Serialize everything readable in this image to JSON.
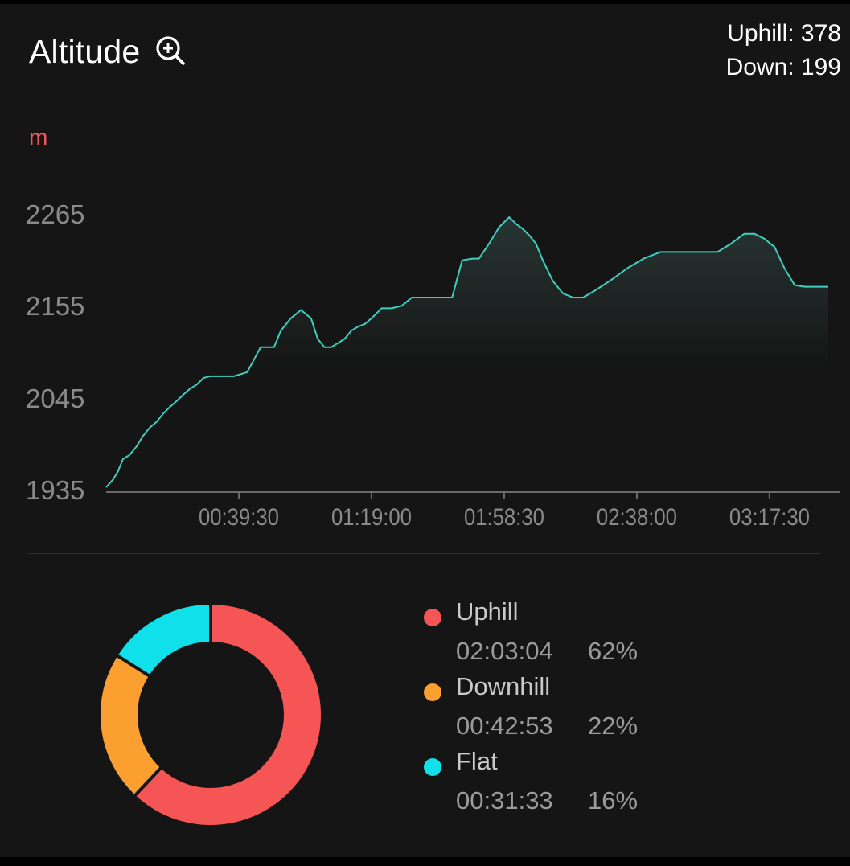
{
  "header": {
    "title": "Altitude",
    "zoom_icon": "zoom-in-icon",
    "uphill_label": "Uphill: 378",
    "down_label": "Down: 199"
  },
  "chart_data": {
    "type": "area",
    "ylabel": "m",
    "yticks": [
      "2265",
      "2155",
      "2045",
      "1935"
    ],
    "ylim": [
      1935,
      2265
    ],
    "xticks": [
      "00:39:30",
      "01:19:00",
      "01:58:30",
      "02:38:00",
      "03:17:30"
    ],
    "xlim": [
      "00:00:00",
      "03:35:00"
    ],
    "grid": false,
    "line_color": "#3fcfc0",
    "series": [
      {
        "x": [
          "00:00:00",
          "00:02:00",
          "00:03:30",
          "00:05:00",
          "00:07:00",
          "00:09:00",
          "00:11:00",
          "00:13:00",
          "00:15:00",
          "00:17:00",
          "00:19:00",
          "00:21:00",
          "00:23:00",
          "00:25:00",
          "00:27:00",
          "00:29:00",
          "00:31:00",
          "00:33:00",
          "00:35:00",
          "00:38:00",
          "00:42:00",
          "00:46:00",
          "00:50:00",
          "00:52:00",
          "00:55:00",
          "00:58:00",
          "01:01:00",
          "01:03:00",
          "01:05:00",
          "01:07:00",
          "01:09:00",
          "01:11:00",
          "01:13:00",
          "01:15:00",
          "01:17:00",
          "01:19:00",
          "01:22:00",
          "01:25:00",
          "01:28:00",
          "01:31:00",
          "01:34:00",
          "01:37:00",
          "01:40:00",
          "01:43:00",
          "01:46:00",
          "01:49:00",
          "01:51:00",
          "01:54:00",
          "01:57:00",
          "02:00:00",
          "02:02:00",
          "02:04:00",
          "02:06:00",
          "02:08:00",
          "02:10:00",
          "02:13:00",
          "02:16:00",
          "02:19:00",
          "02:22:00",
          "02:25:00",
          "02:28:00",
          "02:31:00",
          "02:35:00",
          "02:40:00",
          "02:45:00",
          "02:50:00",
          "02:54:00",
          "02:58:00",
          "03:02:00",
          "03:06:00",
          "03:10:00",
          "03:13:00",
          "03:16:00",
          "03:19:00",
          "03:22:00",
          "03:25:00",
          "03:28:00",
          "03:31:00",
          "03:35:00"
        ],
        "y": [
          1936,
          1945,
          1955,
          1970,
          1975,
          1985,
          1998,
          2008,
          2015,
          2025,
          2033,
          2040,
          2048,
          2055,
          2060,
          2068,
          2070,
          2070,
          2070,
          2070,
          2075,
          2105,
          2105,
          2125,
          2140,
          2150,
          2140,
          2115,
          2105,
          2105,
          2110,
          2115,
          2125,
          2130,
          2133,
          2140,
          2152,
          2152,
          2155,
          2165,
          2165,
          2165,
          2165,
          2165,
          2210,
          2212,
          2212,
          2230,
          2250,
          2262,
          2254,
          2248,
          2240,
          2230,
          2210,
          2185,
          2170,
          2165,
          2165,
          2172,
          2180,
          2188,
          2200,
          2212,
          2220,
          2220,
          2220,
          2220,
          2220,
          2230,
          2242,
          2242,
          2236,
          2226,
          2200,
          2180,
          2178,
          2178,
          2178
        ]
      }
    ]
  },
  "breakdown": {
    "items": [
      {
        "name": "Uphill",
        "time": "02:03:04",
        "percent": "62%",
        "fraction": 0.62,
        "color": "#f65555"
      },
      {
        "name": "Downhill",
        "time": "00:42:53",
        "percent": "22%",
        "fraction": 0.22,
        "color": "#fb9f31"
      },
      {
        "name": "Flat",
        "time": "00:31:33",
        "percent": "16%",
        "fraction": 0.16,
        "color": "#10e0ea"
      }
    ]
  }
}
